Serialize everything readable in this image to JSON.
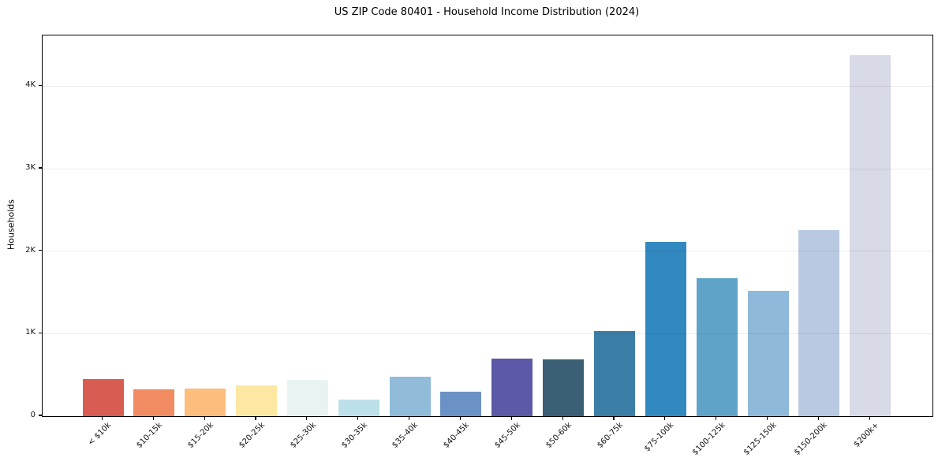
{
  "chart_data": {
    "type": "bar",
    "title": "US ZIP Code 80401 - Household Income Distribution (2024)",
    "xlabel": "",
    "ylabel": "Households",
    "categories": [
      "< $10k",
      "$10-15k",
      "$15-20k",
      "$20-25k",
      "$25-30k",
      "$30-35k",
      "$35-40k",
      "$40-45k",
      "$45-50k",
      "$50-60k",
      "$60-75k",
      "$75-100k",
      "$100-125k",
      "$125-150k",
      "$150-200k",
      "$200k+"
    ],
    "values": [
      450,
      325,
      335,
      370,
      440,
      205,
      475,
      300,
      700,
      690,
      1030,
      2110,
      1675,
      1520,
      2255,
      4380
    ],
    "bar_colors": [
      "#d85c51",
      "#f18b62",
      "#fcbd7d",
      "#fde8a3",
      "#e9f3f4",
      "#bde0ea",
      "#90bbd9",
      "#6b92c5",
      "#5c59a8",
      "#3b5f74",
      "#3b7ea6",
      "#3289bf",
      "#60a3c9",
      "#8fb9da",
      "#b9c9e1",
      "#d9dae8"
    ],
    "yticks": {
      "values": [
        0,
        1000,
        2000,
        3000,
        4000
      ],
      "labels": [
        "0",
        "1K",
        "2K",
        "3K",
        "4K"
      ]
    },
    "ylim": [
      0,
      4615
    ],
    "grid": "horizontal",
    "gridline_color": "#e9e9e9",
    "legend": "none",
    "background": "#ffffff"
  }
}
